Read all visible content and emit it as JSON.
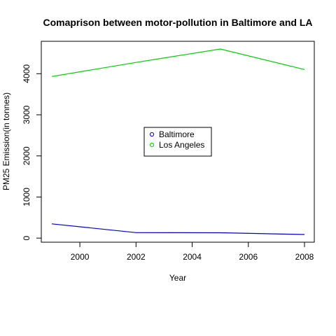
{
  "chart_data": {
    "type": "line",
    "title": "Comaprison between motor-pollution in Baltimore and LA",
    "xlabel": "Year",
    "ylabel": "PM25 Emission(in tonnes)",
    "x": [
      1999,
      2002,
      2005,
      2008
    ],
    "series": [
      {
        "name": "Baltimore",
        "color": "#0000cc",
        "values": [
          346.82,
          134.31,
          130.43,
          88.28
        ]
      },
      {
        "name": "Los Angeles",
        "color": "#00cc00",
        "values": [
          3931.12,
          4274.03,
          4601.42,
          4101.32
        ]
      }
    ],
    "xlim": [
      1999,
      2008
    ],
    "ylim": [
      88,
      4601
    ],
    "xticks": [
      2000,
      2002,
      2004,
      2006,
      2008
    ],
    "yticks": [
      0,
      1000,
      2000,
      3000,
      4000
    ],
    "legend_position": "center",
    "legend_marker": "open-circle",
    "grid": false
  }
}
